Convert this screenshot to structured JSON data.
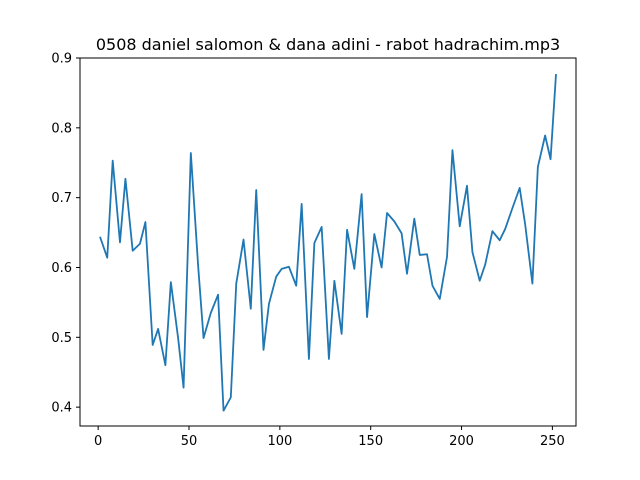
{
  "chart_data": {
    "type": "line",
    "title": "0508 daniel salomon & dana adini - rabot hadrachim.mp3",
    "xlabel": "",
    "ylabel": "",
    "xlim": [
      -10,
      263
    ],
    "ylim": [
      0.373,
      0.9
    ],
    "xticks": [
      0,
      50,
      100,
      150,
      200,
      250
    ],
    "yticks": [
      0.4,
      0.5,
      0.6,
      0.7,
      0.8,
      0.9
    ],
    "xtick_labels": [
      "0",
      "50",
      "100",
      "150",
      "200",
      "250"
    ],
    "ytick_labels": [
      "0.4",
      "0.5",
      "0.6",
      "0.7",
      "0.8",
      "0.9"
    ],
    "grid": false,
    "line_color": "#1f77b4",
    "series": [
      {
        "x": [
          1,
          5,
          8,
          12,
          15,
          19,
          23,
          26,
          30,
          33,
          37,
          40,
          44,
          47,
          51,
          55,
          58,
          62,
          66,
          69,
          73,
          76,
          80,
          84,
          87,
          91,
          94,
          98,
          101,
          105,
          109,
          112,
          116,
          119,
          123,
          127,
          130,
          134,
          137,
          141,
          145,
          148,
          152,
          156,
          159,
          163,
          167,
          170,
          174,
          177,
          181,
          184,
          188,
          192,
          195,
          199,
          203,
          206,
          210,
          213,
          217,
          221,
          224,
          228,
          232,
          235,
          239,
          242,
          246,
          249,
          252
        ],
        "y": [
          0.644,
          0.614,
          0.753,
          0.636,
          0.727,
          0.624,
          0.634,
          0.665,
          0.489,
          0.512,
          0.46,
          0.579,
          0.499,
          0.428,
          0.764,
          0.603,
          0.499,
          0.535,
          0.561,
          0.395,
          0.414,
          0.577,
          0.64,
          0.541,
          0.711,
          0.482,
          0.548,
          0.587,
          0.598,
          0.601,
          0.574,
          0.691,
          0.469,
          0.635,
          0.658,
          0.469,
          0.581,
          0.505,
          0.654,
          0.598,
          0.705,
          0.529,
          0.648,
          0.6,
          0.678,
          0.666,
          0.649,
          0.591,
          0.67,
          0.618,
          0.619,
          0.574,
          0.555,
          0.615,
          0.768,
          0.659,
          0.717,
          0.622,
          0.581,
          0.604,
          0.652,
          0.639,
          0.655,
          0.685,
          0.714,
          0.662,
          0.577,
          0.744,
          0.789,
          0.755,
          0.877
        ]
      }
    ]
  }
}
